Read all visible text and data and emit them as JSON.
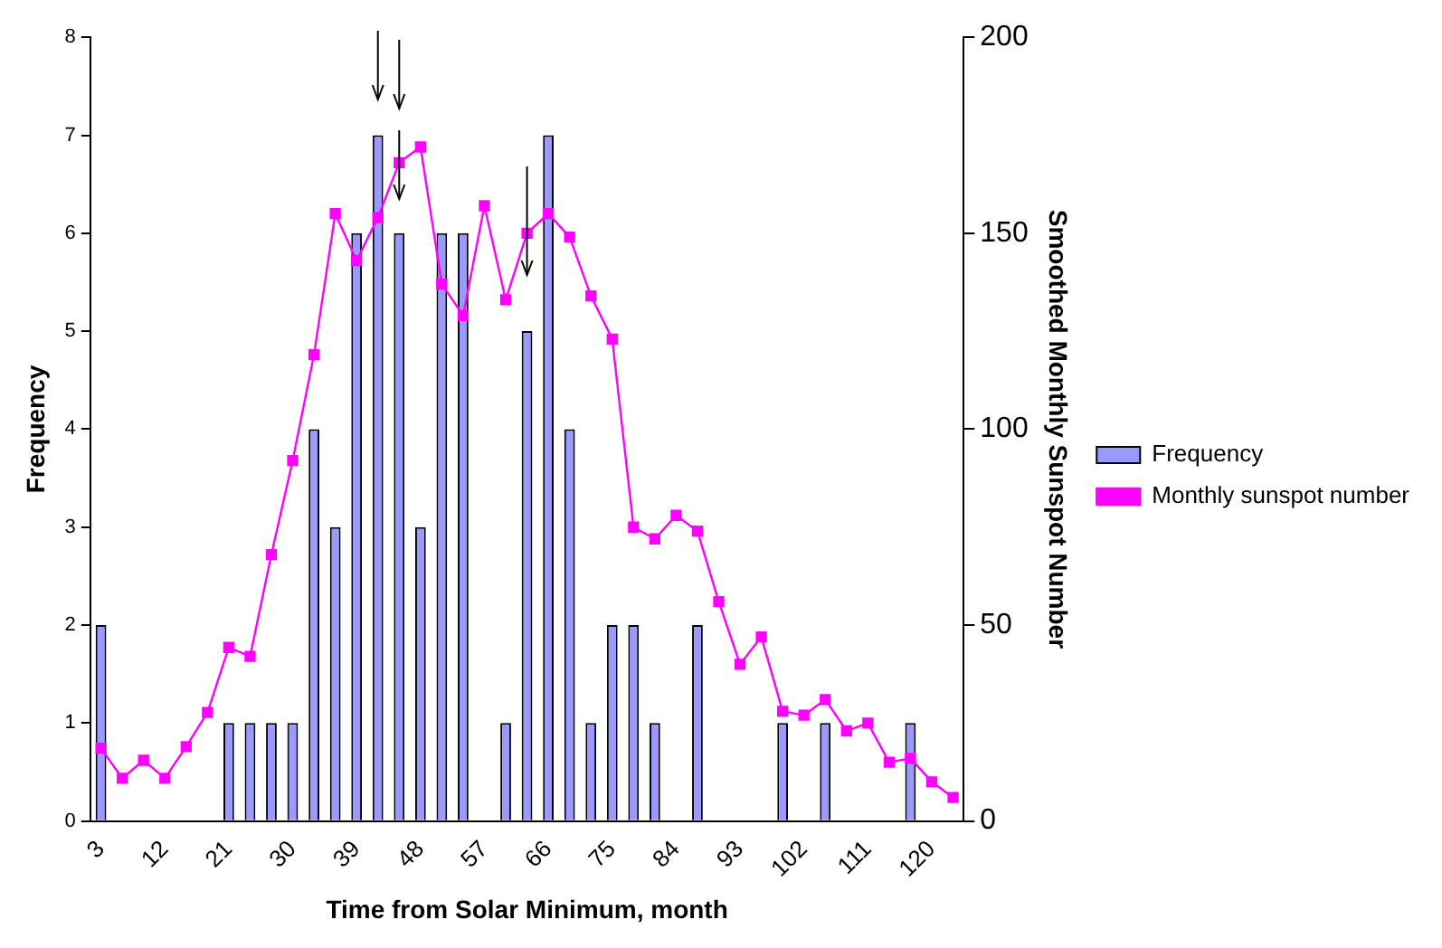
{
  "chart_data": {
    "type": "bar",
    "xlabel": "Time from Solar Minimum, month",
    "ylabel": "Frequency",
    "y2label": "Smoothed Monthly Sunspot Number",
    "categories": [
      "3",
      null,
      null,
      "12",
      null,
      null,
      "21",
      null,
      null,
      "30",
      null,
      null,
      "39",
      null,
      null,
      "48",
      null,
      null,
      "57",
      null,
      null,
      "66",
      null,
      null,
      "75",
      null,
      null,
      "84",
      null,
      null,
      "93",
      null,
      null,
      "102",
      null,
      null,
      "111",
      null,
      null,
      "120",
      null
    ],
    "series": [
      {
        "name": "Frequency",
        "color": "#9999ff",
        "values": [
          2,
          0,
          0,
          0,
          0,
          0,
          1,
          1,
          1,
          1,
          4,
          3,
          6,
          7,
          6,
          3,
          6,
          6,
          0,
          1,
          5,
          7,
          4,
          1,
          2,
          2,
          1,
          0,
          2,
          0,
          0,
          0,
          1,
          0,
          1,
          0,
          0,
          0,
          1,
          0,
          0
        ]
      },
      {
        "type": "line",
        "name": "Monthly sunspot number",
        "color": "#ff00ff",
        "axis": "y2",
        "values": [
          18.6,
          10.9,
          15.5,
          10.9,
          19,
          27.7,
          44.3,
          42,
          68,
          92,
          119,
          155,
          143,
          154,
          168,
          172,
          137,
          129,
          157,
          133,
          150,
          155,
          149,
          134,
          123,
          75,
          72,
          78,
          74,
          56,
          40,
          47,
          28,
          27,
          31,
          23,
          25,
          15,
          16,
          10,
          6
        ]
      }
    ],
    "ylim": [
      0,
      8
    ],
    "yticks": [
      0,
      1,
      2,
      3,
      4,
      5,
      6,
      7,
      8
    ],
    "y2lim": [
      0,
      200
    ],
    "y2ticks": [
      0,
      50,
      100,
      150,
      200
    ],
    "grid": false,
    "legend": "right",
    "marker": "square",
    "line_style": "solid"
  }
}
